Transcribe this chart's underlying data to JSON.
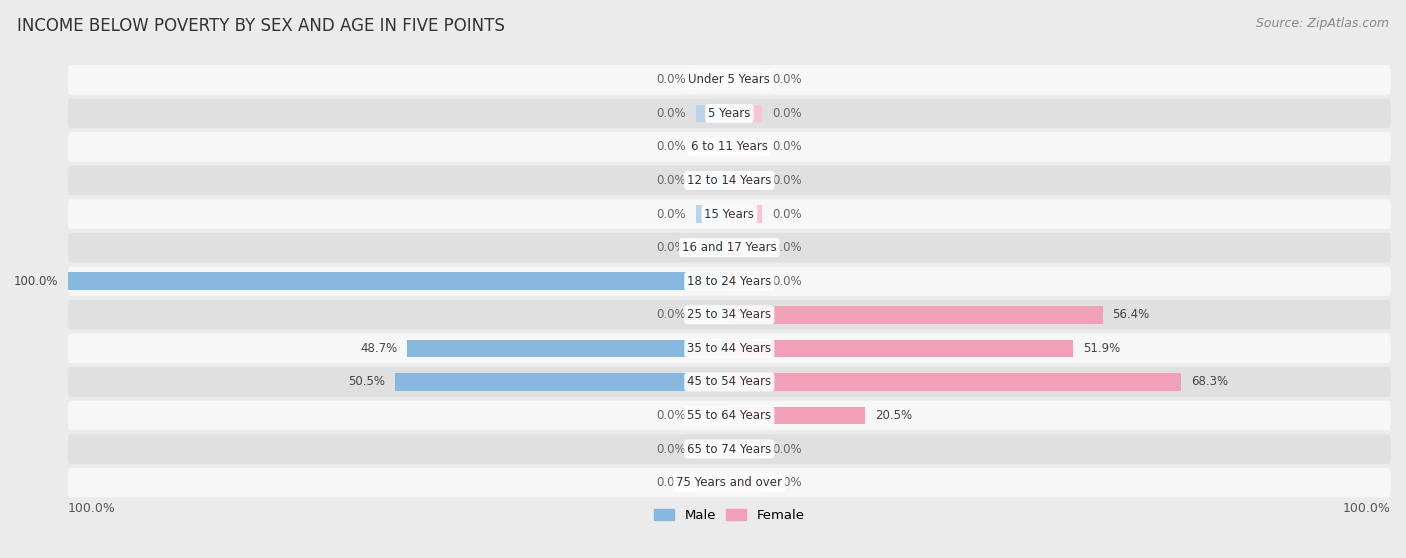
{
  "title": "INCOME BELOW POVERTY BY SEX AND AGE IN FIVE POINTS",
  "source": "Source: ZipAtlas.com",
  "categories": [
    "Under 5 Years",
    "5 Years",
    "6 to 11 Years",
    "12 to 14 Years",
    "15 Years",
    "16 and 17 Years",
    "18 to 24 Years",
    "25 to 34 Years",
    "35 to 44 Years",
    "45 to 54 Years",
    "55 to 64 Years",
    "65 to 74 Years",
    "75 Years and over"
  ],
  "male_values": [
    0.0,
    0.0,
    0.0,
    0.0,
    0.0,
    0.0,
    100.0,
    0.0,
    48.7,
    50.5,
    0.0,
    0.0,
    0.0
  ],
  "female_values": [
    0.0,
    0.0,
    0.0,
    0.0,
    0.0,
    0.0,
    0.0,
    56.4,
    51.9,
    68.3,
    20.5,
    0.0,
    0.0
  ],
  "male_color": "#85b8dc",
  "female_color": "#f2a0b8",
  "male_stub_color": "#b8d4ea",
  "female_stub_color": "#f7c5d5",
  "bar_height": 0.52,
  "stub_size": 5.0,
  "bg_color": "#ebebeb",
  "row_color_odd": "#f7f7f7",
  "row_color_even": "#e0e0e0",
  "xlim": 100.0,
  "title_fontsize": 12,
  "source_fontsize": 9,
  "label_fontsize": 8.5,
  "cat_fontsize": 8.5,
  "tick_fontsize": 9,
  "legend_fontsize": 9.5
}
